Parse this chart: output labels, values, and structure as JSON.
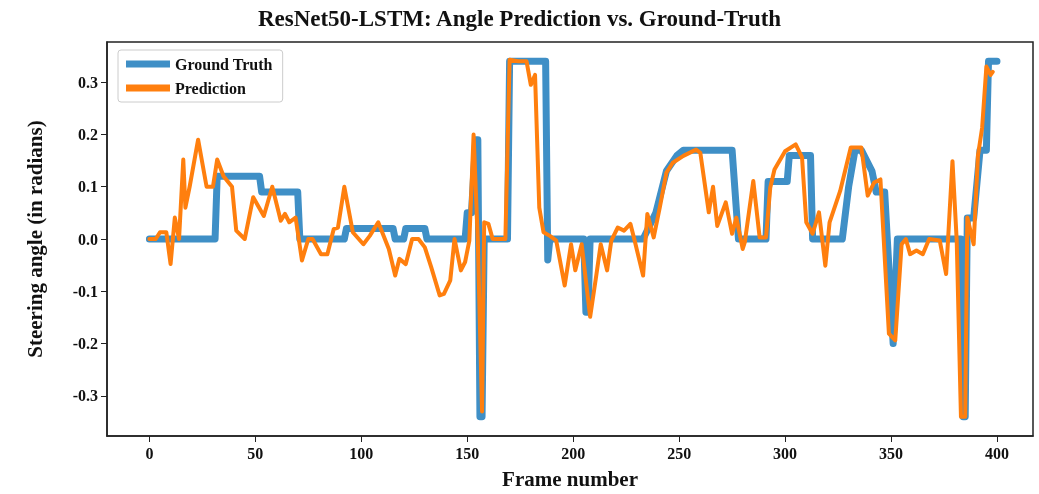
{
  "chart_data": {
    "type": "line",
    "title": "ResNet50-LSTM: Angle Prediction vs. Ground-Truth",
    "xlabel": "Frame number",
    "ylabel": "Steering angle (in radians)",
    "xlim": [
      -20,
      417
    ],
    "xticks": [
      0,
      50,
      100,
      150,
      200,
      250,
      300,
      350,
      400
    ],
    "ylim": [
      -0.377,
      0.377
    ],
    "yticks": [
      -0.3,
      -0.2,
      -0.1,
      {
        "value": 0,
        "label": "0.0"
      },
      0.1,
      0.2,
      0.3
    ],
    "grid": false,
    "legend": "top left",
    "marker": "none",
    "line_style": "solid",
    "series": [
      {
        "name": "Ground Truth",
        "color": "#3f8fc6",
        "x": [
          0,
          31,
          32,
          52,
          53,
          70,
          71,
          92,
          93,
          115,
          116,
          120,
          121,
          130,
          131,
          149,
          150,
          152,
          154,
          155,
          156,
          157,
          158,
          169,
          170,
          187,
          188,
          189,
          205,
          206,
          207,
          208,
          233,
          239,
          244,
          249,
          252,
          275,
          278,
          291,
          292,
          301,
          302,
          312,
          313,
          327,
          330,
          333,
          336,
          341,
          343,
          347,
          351,
          353,
          383,
          384,
          385,
          386,
          389,
          392,
          395,
          396,
          400
        ],
        "values": [
          0,
          0,
          0.12,
          0.12,
          0.09,
          0.09,
          0,
          0,
          0.02,
          0.02,
          0,
          0,
          0.02,
          0.02,
          0,
          0,
          0.05,
          0.05,
          0.19,
          0.19,
          -0.34,
          -0.34,
          0,
          0,
          0.34,
          0.34,
          -0.04,
          0,
          0,
          -0.14,
          -0.14,
          0,
          0,
          0.05,
          0.13,
          0.16,
          0.17,
          0.17,
          0,
          0,
          0.11,
          0.11,
          0.16,
          0.16,
          0,
          0,
          0.1,
          0.17,
          0.17,
          0.13,
          0.09,
          0.09,
          -0.2,
          0,
          0,
          -0.34,
          -0.34,
          0.04,
          0.04,
          0.17,
          0.17,
          0.34,
          0.34
        ]
      },
      {
        "name": "Prediction",
        "color": "#ff7f0e",
        "x": [
          0,
          3,
          5,
          8,
          10,
          12,
          14,
          16,
          17,
          19,
          23,
          27,
          30,
          32,
          35,
          39,
          41,
          45,
          49,
          54,
          58,
          62,
          64,
          66,
          69,
          72,
          75,
          77,
          81,
          84,
          87,
          89,
          92,
          96,
          101,
          104,
          108,
          113,
          116,
          118,
          121,
          124,
          127,
          130,
          133,
          137,
          139,
          142,
          144,
          147,
          149,
          151,
          153,
          155,
          157,
          158,
          160,
          162,
          168,
          170,
          174,
          178,
          180,
          182,
          184,
          186,
          189,
          192,
          196,
          199,
          201,
          204,
          208,
          211,
          213,
          216,
          218,
          221,
          224,
          227,
          229,
          233,
          235,
          238,
          241,
          244,
          247,
          252,
          258,
          260,
          264,
          266,
          268,
          272,
          275,
          277,
          280,
          281,
          285,
          288,
          291,
          293,
          295,
          300,
          305,
          308,
          310,
          313,
          316,
          319,
          321,
          326,
          331,
          336,
          339,
          342,
          345,
          349,
          352,
          355,
          357,
          359,
          362,
          365,
          368,
          373,
          376,
          379,
          381,
          383,
          385,
          386,
          389,
          391,
          393,
          395,
          397,
          398
        ],
        "values": [
          0,
          0,
          0.013,
          0.013,
          -0.048,
          0.041,
          0,
          0.152,
          0.06,
          0.1,
          0.19,
          0.1,
          0.1,
          0.152,
          0.12,
          0.1,
          0.016,
          0,
          0.08,
          0.044,
          0.1,
          0.035,
          0.048,
          0.032,
          0.041,
          -0.041,
          0,
          0,
          -0.029,
          -0.029,
          0.019,
          0.022,
          0.1,
          0.013,
          -0.01,
          0.006,
          0.032,
          -0.019,
          -0.07,
          -0.038,
          -0.048,
          0,
          0,
          -0.016,
          -0.054,
          -0.108,
          -0.105,
          -0.079,
          0,
          -0.06,
          -0.044,
          -0.003,
          0.2,
          -0.003,
          -0.33,
          0.032,
          0.029,
          0,
          0,
          0.343,
          0.34,
          0.34,
          0.295,
          0.314,
          0.06,
          0.013,
          0.006,
          -0.003,
          -0.089,
          -0.01,
          -0.06,
          -0.01,
          -0.149,
          -0.067,
          -0.01,
          -0.06,
          -0.003,
          0.022,
          0.016,
          0.029,
          -0.003,
          -0.07,
          0.048,
          0.003,
          0.063,
          0.127,
          0.146,
          0.159,
          0.171,
          0.165,
          0.051,
          0.1,
          0.025,
          0.07,
          0.01,
          0.041,
          -0.019,
          -0.006,
          0.111,
          0.003,
          0.003,
          0.098,
          0.133,
          0.168,
          0.181,
          0.156,
          0.032,
          0.01,
          0.051,
          -0.051,
          0.032,
          0.092,
          0.175,
          0.175,
          0.083,
          0.108,
          0.114,
          -0.181,
          -0.194,
          -0.01,
          0,
          -0.029,
          -0.022,
          -0.029,
          0,
          -0.003,
          -0.067,
          0.149,
          -0.003,
          -0.34,
          -0.34,
          0.041,
          -0.01,
          0.159,
          0.213,
          0.33,
          0.314,
          0.32
        ]
      }
    ]
  }
}
